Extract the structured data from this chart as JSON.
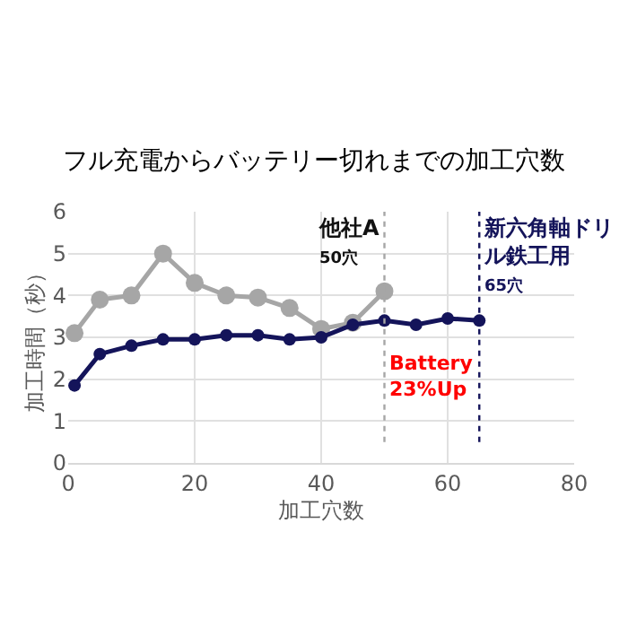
{
  "chart_data": {
    "type": "line",
    "title": "フル充電からバッテリー切れまでの加工穴数",
    "xlabel": "加工穴数",
    "ylabel": "加工時間（秒）",
    "xlim": [
      0,
      80
    ],
    "xticks": [
      0,
      20,
      40,
      60,
      80
    ],
    "ylim": [
      0,
      6
    ],
    "yticks": [
      0,
      1,
      2,
      3,
      4,
      5,
      6
    ],
    "grid": true,
    "marker": "circle",
    "line_style": "solid",
    "series": [
      {
        "color": "#a6a6a6",
        "x": [
          1,
          5,
          10,
          15,
          20,
          25,
          30,
          35,
          40,
          45,
          50
        ],
        "values": [
          3.1,
          3.9,
          4.0,
          5.0,
          4.3,
          4.0,
          3.95,
          3.7,
          3.2,
          3.35,
          4.1
        ]
      },
      {
        "color": "#14145a",
        "x": [
          1,
          5,
          10,
          15,
          20,
          25,
          30,
          35,
          40,
          45,
          50,
          55,
          60,
          65
        ],
        "values": [
          1.85,
          2.6,
          2.8,
          2.95,
          2.95,
          3.05,
          3.05,
          2.95,
          3.0,
          3.3,
          3.4,
          3.3,
          3.45,
          3.4
        ]
      }
    ],
    "ref_lines": [
      {
        "axis": "x",
        "value": 50,
        "label": "他社A\n50穴",
        "color": "#a6a6a6",
        "line_style": "dotted"
      },
      {
        "axis": "x",
        "value": 65,
        "label": "新六角軸ドリル鉄工用\n65穴",
        "color": "#14145a",
        "line_style": "dotted"
      }
    ],
    "annotations": [
      "Battery\n23%Up"
    ]
  }
}
